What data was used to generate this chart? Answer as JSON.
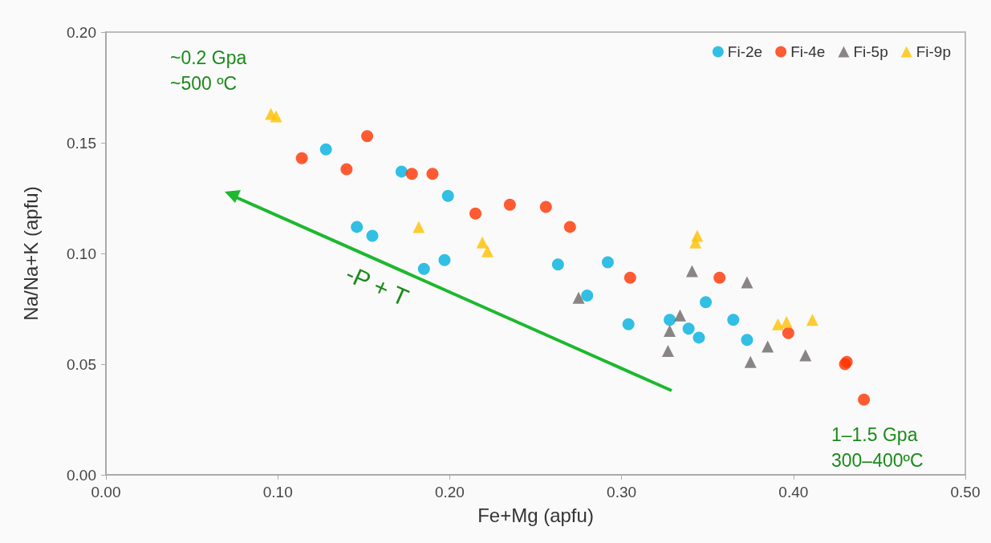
{
  "chart_data": {
    "type": "scatter",
    "xlabel": "Fe+Mg (apfu)",
    "ylabel": "Na/Na+K (apfu)",
    "xlim": [
      0,
      0.5
    ],
    "ylim": [
      0,
      0.2
    ],
    "xticks": [
      {
        "value": 0,
        "label": "0.00"
      },
      {
        "value": 0.1,
        "label": "0.10"
      },
      {
        "value": 0.2,
        "label": "0.20"
      },
      {
        "value": 0.3,
        "label": "0.30"
      },
      {
        "value": 0.4,
        "label": "0.40"
      },
      {
        "value": 0.5,
        "label": "0.50"
      }
    ],
    "yticks": [
      {
        "value": 0,
        "label": "0.00"
      },
      {
        "value": 0.05,
        "label": "0.05"
      },
      {
        "value": 0.1,
        "label": "0.10"
      },
      {
        "value": 0.15,
        "label": "0.15"
      },
      {
        "value": 0.2,
        "label": "0.20"
      }
    ],
    "grid": false,
    "legend": "top right",
    "annotations": [
      "~0.2 Gpa",
      "~500 ºC",
      "-P + T",
      "1–1.5 Gpa",
      "300–400ºC"
    ],
    "series": [
      {
        "name": "Fi-2e",
        "color": "#00b0df",
        "marker": "circle",
        "x": [
          0.128,
          0.172,
          0.199,
          0.146,
          0.155,
          0.185,
          0.197,
          0.263,
          0.292,
          0.28,
          0.304,
          0.328,
          0.339,
          0.345,
          0.349,
          0.365,
          0.373
        ],
        "values": [
          0.147,
          0.137,
          0.126,
          0.112,
          0.108,
          0.093,
          0.097,
          0.095,
          0.096,
          0.081,
          0.068,
          0.07,
          0.066,
          0.062,
          0.078,
          0.07,
          0.061
        ]
      },
      {
        "name": "Fi-4e",
        "color": "#ff3300",
        "marker": "circle",
        "x": [
          0.114,
          0.152,
          0.14,
          0.178,
          0.19,
          0.215,
          0.235,
          0.256,
          0.27,
          0.305,
          0.357,
          0.397,
          0.431,
          0.43,
          0.441
        ],
        "values": [
          0.143,
          0.153,
          0.138,
          0.136,
          0.136,
          0.118,
          0.122,
          0.121,
          0.112,
          0.089,
          0.089,
          0.064,
          0.051,
          0.05,
          0.034
        ]
      },
      {
        "name": "Fi-5p",
        "color": "#6d6867",
        "marker": "triangle",
        "x": [
          0.275,
          0.341,
          0.373,
          0.334,
          0.328,
          0.327,
          0.385,
          0.375,
          0.407
        ],
        "values": [
          0.08,
          0.092,
          0.087,
          0.072,
          0.065,
          0.056,
          0.058,
          0.051,
          0.054
        ]
      },
      {
        "name": "Fi-9p",
        "color": "#ffc000",
        "marker": "triangle",
        "x": [
          0.096,
          0.099,
          0.182,
          0.219,
          0.222,
          0.344,
          0.343,
          0.391,
          0.396,
          0.411
        ],
        "values": [
          0.163,
          0.162,
          0.112,
          0.105,
          0.101,
          0.108,
          0.105,
          0.068,
          0.069,
          0.07
        ]
      }
    ]
  }
}
